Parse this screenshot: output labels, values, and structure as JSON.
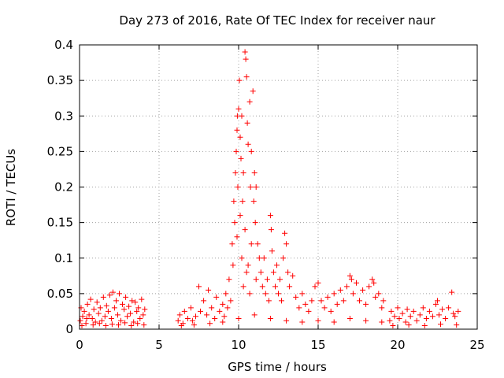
{
  "chart_data": {
    "type": "scatter",
    "title": "Day 273 of 2016, Rate Of TEC Index for receiver naur",
    "xlabel": "GPS time / hours",
    "ylabel": "ROTI / TECUs",
    "xlim": [
      0,
      25
    ],
    "ylim": [
      0,
      0.4
    ],
    "xticks": [
      0,
      5,
      10,
      15,
      20,
      25
    ],
    "xtick_labels": [
      "0",
      "5",
      "10",
      "15",
      "20",
      "25"
    ],
    "yticks": [
      0,
      0.05,
      0.1,
      0.15,
      0.2,
      0.25,
      0.3,
      0.35,
      0.4
    ],
    "ytick_labels": [
      "0",
      "0.05",
      "0.1",
      "0.15",
      "0.2",
      "0.25",
      "0.3",
      "0.35",
      "0.4"
    ],
    "grid": true,
    "marker": "+",
    "marker_color": "#ff0000",
    "note": "points sampled from the dense ROTI cloud; each [hour, ROTI]",
    "points": [
      [
        0.05,
        0.012
      ],
      [
        0.1,
        0.03
      ],
      [
        0.2,
        0.018
      ],
      [
        0.3,
        0.025
      ],
      [
        0.4,
        0.008
      ],
      [
        0.5,
        0.035
      ],
      [
        0.6,
        0.02
      ],
      [
        0.7,
        0.042
      ],
      [
        0.8,
        0.015
      ],
      [
        0.9,
        0.028
      ],
      [
        1.0,
        0.01
      ],
      [
        1.1,
        0.038
      ],
      [
        1.2,
        0.022
      ],
      [
        1.3,
        0.03
      ],
      [
        1.4,
        0.012
      ],
      [
        1.5,
        0.045
      ],
      [
        1.6,
        0.018
      ],
      [
        1.7,
        0.033
      ],
      [
        1.8,
        0.025
      ],
      [
        1.9,
        0.048
      ],
      [
        2.0,
        0.015
      ],
      [
        2.1,
        0.052
      ],
      [
        2.2,
        0.03
      ],
      [
        2.3,
        0.04
      ],
      [
        2.4,
        0.02
      ],
      [
        2.5,
        0.05
      ],
      [
        2.6,
        0.012
      ],
      [
        2.7,
        0.035
      ],
      [
        2.8,
        0.028
      ],
      [
        2.9,
        0.045
      ],
      [
        3.0,
        0.018
      ],
      [
        3.1,
        0.032
      ],
      [
        3.2,
        0.022
      ],
      [
        3.3,
        0.04
      ],
      [
        3.4,
        0.01
      ],
      [
        3.5,
        0.038
      ],
      [
        3.6,
        0.025
      ],
      [
        3.7,
        0.03
      ],
      [
        3.8,
        0.015
      ],
      [
        3.9,
        0.042
      ],
      [
        4.0,
        0.02
      ],
      [
        4.1,
        0.028
      ],
      [
        0.15,
        0.005
      ],
      [
        0.45,
        0.015
      ],
      [
        0.85,
        0.006
      ],
      [
        1.25,
        0.008
      ],
      [
        1.65,
        0.005
      ],
      [
        2.05,
        0.007
      ],
      [
        2.45,
        0.006
      ],
      [
        2.85,
        0.009
      ],
      [
        3.25,
        0.005
      ],
      [
        3.65,
        0.008
      ],
      [
        4.05,
        0.006
      ],
      [
        6.2,
        0.012
      ],
      [
        6.3,
        0.02
      ],
      [
        6.5,
        0.008
      ],
      [
        6.6,
        0.025
      ],
      [
        6.8,
        0.015
      ],
      [
        7.0,
        0.03
      ],
      [
        7.1,
        0.012
      ],
      [
        7.3,
        0.018
      ],
      [
        7.5,
        0.06
      ],
      [
        7.6,
        0.025
      ],
      [
        7.8,
        0.04
      ],
      [
        8.0,
        0.02
      ],
      [
        8.1,
        0.055
      ],
      [
        8.3,
        0.03
      ],
      [
        8.5,
        0.015
      ],
      [
        8.6,
        0.045
      ],
      [
        8.8,
        0.025
      ],
      [
        9.0,
        0.035
      ],
      [
        9.1,
        0.018
      ],
      [
        9.2,
        0.05
      ],
      [
        9.3,
        0.03
      ],
      [
        9.4,
        0.07
      ],
      [
        9.5,
        0.04
      ],
      [
        9.6,
        0.12
      ],
      [
        9.65,
        0.09
      ],
      [
        9.7,
        0.18
      ],
      [
        9.75,
        0.15
      ],
      [
        9.8,
        0.22
      ],
      [
        9.85,
        0.25
      ],
      [
        9.9,
        0.28
      ],
      [
        9.92,
        0.3
      ],
      [
        9.95,
        0.2
      ],
      [
        10.0,
        0.31
      ],
      [
        10.05,
        0.35
      ],
      [
        10.1,
        0.27
      ],
      [
        10.15,
        0.24
      ],
      [
        10.2,
        0.3
      ],
      [
        10.25,
        0.18
      ],
      [
        10.3,
        0.22
      ],
      [
        10.4,
        0.39
      ],
      [
        10.45,
        0.38
      ],
      [
        10.5,
        0.355
      ],
      [
        10.55,
        0.29
      ],
      [
        10.6,
        0.26
      ],
      [
        10.7,
        0.32
      ],
      [
        10.75,
        0.2
      ],
      [
        10.8,
        0.25
      ],
      [
        10.9,
        0.335
      ],
      [
        10.95,
        0.18
      ],
      [
        11.0,
        0.22
      ],
      [
        11.05,
        0.15
      ],
      [
        11.1,
        0.2
      ],
      [
        11.2,
        0.12
      ],
      [
        11.3,
        0.1
      ],
      [
        11.4,
        0.08
      ],
      [
        11.5,
        0.06
      ],
      [
        11.6,
        0.1
      ],
      [
        11.7,
        0.05
      ],
      [
        11.8,
        0.07
      ],
      [
        11.9,
        0.04
      ],
      [
        12.0,
        0.16
      ],
      [
        12.05,
        0.14
      ],
      [
        12.1,
        0.11
      ],
      [
        12.2,
        0.08
      ],
      [
        12.3,
        0.06
      ],
      [
        12.4,
        0.09
      ],
      [
        12.5,
        0.05
      ],
      [
        12.6,
        0.07
      ],
      [
        12.7,
        0.04
      ],
      [
        12.8,
        0.1
      ],
      [
        12.9,
        0.135
      ],
      [
        13.0,
        0.12
      ],
      [
        13.1,
        0.08
      ],
      [
        13.2,
        0.06
      ],
      [
        13.4,
        0.075
      ],
      [
        13.6,
        0.045
      ],
      [
        13.8,
        0.03
      ],
      [
        14.0,
        0.05
      ],
      [
        14.2,
        0.035
      ],
      [
        14.4,
        0.025
      ],
      [
        14.6,
        0.04
      ],
      [
        14.8,
        0.06
      ],
      [
        15.0,
        0.065
      ],
      [
        15.2,
        0.04
      ],
      [
        15.4,
        0.03
      ],
      [
        15.6,
        0.045
      ],
      [
        15.8,
        0.025
      ],
      [
        16.0,
        0.05
      ],
      [
        16.2,
        0.035
      ],
      [
        16.4,
        0.055
      ],
      [
        16.6,
        0.04
      ],
      [
        16.8,
        0.06
      ],
      [
        17.0,
        0.075
      ],
      [
        17.1,
        0.07
      ],
      [
        17.2,
        0.05
      ],
      [
        17.4,
        0.065
      ],
      [
        17.6,
        0.04
      ],
      [
        17.8,
        0.055
      ],
      [
        18.0,
        0.035
      ],
      [
        18.2,
        0.06
      ],
      [
        18.4,
        0.07
      ],
      [
        18.5,
        0.065
      ],
      [
        18.6,
        0.045
      ],
      [
        18.8,
        0.05
      ],
      [
        19.0,
        0.03
      ],
      [
        19.1,
        0.04
      ],
      [
        6.4,
        0.005
      ],
      [
        7.2,
        0.006
      ],
      [
        8.2,
        0.008
      ],
      [
        9.0,
        0.01
      ],
      [
        10.0,
        0.015
      ],
      [
        11.0,
        0.02
      ],
      [
        12.0,
        0.015
      ],
      [
        13.0,
        0.012
      ],
      [
        14.0,
        0.01
      ],
      [
        15.0,
        0.012
      ],
      [
        16.0,
        0.01
      ],
      [
        17.0,
        0.015
      ],
      [
        18.0,
        0.012
      ],
      [
        19.0,
        0.01
      ],
      [
        10.2,
        0.1
      ],
      [
        10.4,
        0.14
      ],
      [
        10.6,
        0.09
      ],
      [
        10.8,
        0.12
      ],
      [
        10.3,
        0.06
      ],
      [
        10.5,
        0.08
      ],
      [
        10.7,
        0.05
      ],
      [
        10.1,
        0.16
      ],
      [
        9.9,
        0.13
      ],
      [
        11.1,
        0.07
      ],
      [
        19.5,
        0.012
      ],
      [
        19.6,
        0.025
      ],
      [
        19.8,
        0.018
      ],
      [
        20.0,
        0.03
      ],
      [
        20.1,
        0.015
      ],
      [
        20.3,
        0.022
      ],
      [
        20.5,
        0.01
      ],
      [
        20.6,
        0.028
      ],
      [
        20.8,
        0.018
      ],
      [
        21.0,
        0.025
      ],
      [
        21.2,
        0.012
      ],
      [
        21.4,
        0.02
      ],
      [
        21.6,
        0.03
      ],
      [
        21.8,
        0.015
      ],
      [
        22.0,
        0.025
      ],
      [
        22.2,
        0.018
      ],
      [
        22.4,
        0.035
      ],
      [
        22.5,
        0.04
      ],
      [
        22.6,
        0.02
      ],
      [
        22.8,
        0.028
      ],
      [
        23.0,
        0.015
      ],
      [
        23.2,
        0.03
      ],
      [
        23.4,
        0.052
      ],
      [
        23.5,
        0.022
      ],
      [
        23.6,
        0.018
      ],
      [
        23.8,
        0.025
      ],
      [
        19.7,
        0.005
      ],
      [
        20.7,
        0.006
      ],
      [
        21.7,
        0.005
      ],
      [
        22.7,
        0.007
      ],
      [
        23.7,
        0.006
      ]
    ]
  }
}
